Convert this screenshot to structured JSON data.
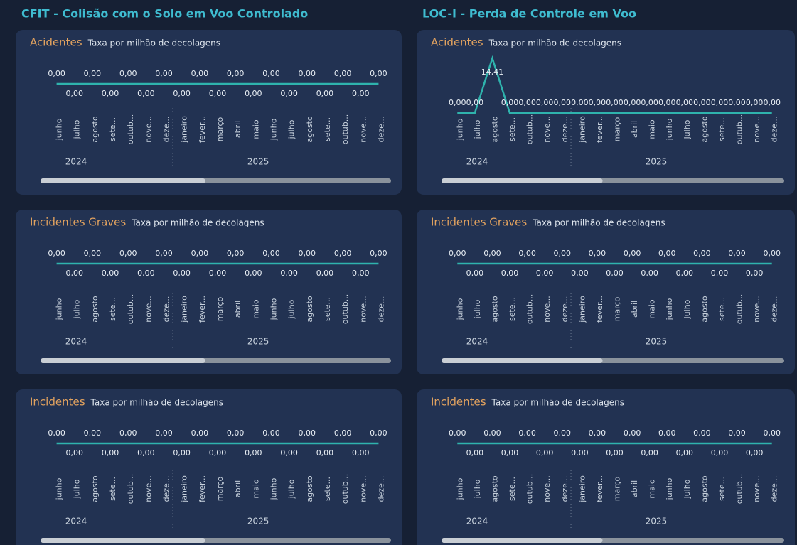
{
  "sections": [
    {
      "title": "CFIT - Colisão com o Solo em Voo Controlado"
    },
    {
      "title": "LOC-I - Perda de Controle em Voo"
    }
  ],
  "chart_data": [
    {
      "type": "line",
      "title": "Acidentes",
      "subtitle": "Taxa por milhão de decolagens",
      "color": "#2fb3ad",
      "categories": [
        "junho",
        "julho",
        "agosto",
        "sete...",
        "outub...",
        "nove...",
        "deze...",
        "janeiro",
        "fever...",
        "março",
        "abril",
        "maio",
        "junho",
        "julho",
        "agosto",
        "sete...",
        "outub...",
        "nove...",
        "deze..."
      ],
      "groups": [
        {
          "label": "2024",
          "size": 7
        },
        {
          "label": "2025",
          "size": 12
        }
      ],
      "values": [
        0,
        0,
        0,
        0,
        0,
        0,
        0,
        0,
        0,
        0,
        0,
        0,
        0,
        0,
        0,
        0,
        0,
        0,
        0
      ],
      "value_labels": [
        "0,00",
        "0,00",
        "0,00",
        "0,00",
        "0,00",
        "0,00",
        "0,00",
        "0,00",
        "0,00",
        "0,00",
        "0,00",
        "0,00",
        "0,00",
        "0,00",
        "0,00",
        "0,00",
        "0,00",
        "0,00",
        "0,00"
      ]
    },
    {
      "type": "line",
      "title": "Incidentes Graves",
      "subtitle": "Taxa por milhão de decolagens",
      "color": "#2fb3ad",
      "categories": [
        "junho",
        "julho",
        "agosto",
        "sete...",
        "outub...",
        "nove...",
        "deze...",
        "janeiro",
        "fever...",
        "março",
        "abril",
        "maio",
        "junho",
        "julho",
        "agosto",
        "sete...",
        "outub...",
        "nove...",
        "deze..."
      ],
      "groups": [
        {
          "label": "2024",
          "size": 7
        },
        {
          "label": "2025",
          "size": 12
        }
      ],
      "values": [
        0,
        0,
        0,
        0,
        0,
        0,
        0,
        0,
        0,
        0,
        0,
        0,
        0,
        0,
        0,
        0,
        0,
        0,
        0
      ],
      "value_labels": [
        "0,00",
        "0,00",
        "0,00",
        "0,00",
        "0,00",
        "0,00",
        "0,00",
        "0,00",
        "0,00",
        "0,00",
        "0,00",
        "0,00",
        "0,00",
        "0,00",
        "0,00",
        "0,00",
        "0,00",
        "0,00",
        "0,00"
      ]
    },
    {
      "type": "line",
      "title": "Incidentes",
      "subtitle": "Taxa por milhão de decolagens",
      "color": "#2fb3ad",
      "categories": [
        "junho",
        "julho",
        "agosto",
        "sete...",
        "outub...",
        "nove...",
        "deze...",
        "janeiro",
        "fever...",
        "março",
        "abril",
        "maio",
        "junho",
        "julho",
        "agosto",
        "sete...",
        "outub...",
        "nove...",
        "deze..."
      ],
      "groups": [
        {
          "label": "2024",
          "size": 7
        },
        {
          "label": "2025",
          "size": 12
        }
      ],
      "values": [
        0,
        0,
        0,
        0,
        0,
        0,
        0,
        0,
        0,
        0,
        0,
        0,
        0,
        0,
        0,
        0,
        0,
        0,
        0
      ],
      "value_labels": [
        "0,00",
        "0,00",
        "0,00",
        "0,00",
        "0,00",
        "0,00",
        "0,00",
        "0,00",
        "0,00",
        "0,00",
        "0,00",
        "0,00",
        "0,00",
        "0,00",
        "0,00",
        "0,00",
        "0,00",
        "0,00",
        "0,00"
      ]
    },
    {
      "type": "line",
      "title": "Acidentes",
      "subtitle": "Taxa por milhão de decolagens",
      "color": "#2fb3ad",
      "categories": [
        "junho",
        "julho",
        "agosto",
        "sete...",
        "outub...",
        "nove...",
        "deze...",
        "janeiro",
        "fever...",
        "março",
        "abril",
        "maio",
        "junho",
        "julho",
        "agosto",
        "sete...",
        "outub...",
        "nove...",
        "deze..."
      ],
      "groups": [
        {
          "label": "2024",
          "size": 7
        },
        {
          "label": "2025",
          "size": 12
        }
      ],
      "values": [
        0,
        0,
        14.41,
        0,
        0,
        0,
        0,
        0,
        0,
        0,
        0,
        0,
        0,
        0,
        0,
        0,
        0,
        0,
        0
      ],
      "value_labels": [
        "0,00",
        "0,00",
        "14,41",
        "0,00",
        "0,00",
        "0,00",
        "0,00",
        "0,00",
        "0,00",
        "0,00",
        "0,00",
        "0,00",
        "0,00",
        "0,00",
        "0,00",
        "0,00",
        "0,00",
        "0,00",
        "0,00"
      ]
    },
    {
      "type": "line",
      "title": "Incidentes Graves",
      "subtitle": "Taxa por milhão de decolagens",
      "color": "#2fb3ad",
      "categories": [
        "junho",
        "julho",
        "agosto",
        "sete...",
        "outub...",
        "nove...",
        "deze...",
        "janeiro",
        "fever...",
        "março",
        "abril",
        "maio",
        "junho",
        "julho",
        "agosto",
        "sete...",
        "outub...",
        "nove...",
        "deze..."
      ],
      "groups": [
        {
          "label": "2024",
          "size": 7
        },
        {
          "label": "2025",
          "size": 12
        }
      ],
      "values": [
        0,
        0,
        0,
        0,
        0,
        0,
        0,
        0,
        0,
        0,
        0,
        0,
        0,
        0,
        0,
        0,
        0,
        0,
        0
      ],
      "value_labels": [
        "0,00",
        "0,00",
        "0,00",
        "0,00",
        "0,00",
        "0,00",
        "0,00",
        "0,00",
        "0,00",
        "0,00",
        "0,00",
        "0,00",
        "0,00",
        "0,00",
        "0,00",
        "0,00",
        "0,00",
        "0,00",
        "0,00"
      ]
    },
    {
      "type": "line",
      "title": "Incidentes",
      "subtitle": "Taxa por milhão de decolagens",
      "color": "#2fb3ad",
      "categories": [
        "junho",
        "julho",
        "agosto",
        "sete...",
        "outub...",
        "nove...",
        "deze...",
        "janeiro",
        "fever...",
        "março",
        "abril",
        "maio",
        "junho",
        "julho",
        "agosto",
        "sete...",
        "outub...",
        "nove...",
        "deze..."
      ],
      "groups": [
        {
          "label": "2024",
          "size": 7
        },
        {
          "label": "2025",
          "size": 12
        }
      ],
      "values": [
        0,
        0,
        0,
        0,
        0,
        0,
        0,
        0,
        0,
        0,
        0,
        0,
        0,
        0,
        0,
        0,
        0,
        0,
        0
      ],
      "value_labels": [
        "0,00",
        "0,00",
        "0,00",
        "0,00",
        "0,00",
        "0,00",
        "0,00",
        "0,00",
        "0,00",
        "0,00",
        "0,00",
        "0,00",
        "0,00",
        "0,00",
        "0,00",
        "0,00",
        "0,00",
        "0,00",
        "0,00"
      ]
    }
  ]
}
